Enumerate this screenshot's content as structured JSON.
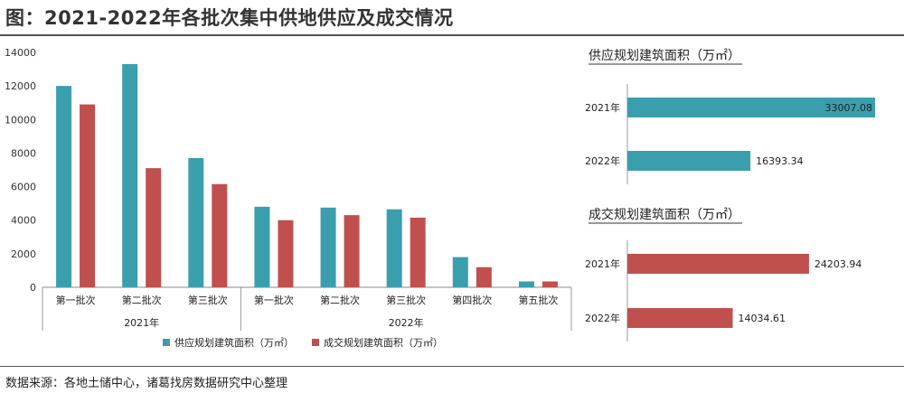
{
  "title": "图：2021-2022年各批次集中供地供应及成交情况",
  "source": "数据来源：各地土储中心，诸葛找房数据研究中心整理",
  "colors": {
    "supply": "#3a9ead",
    "deal": "#c0504d"
  },
  "chart_data": [
    {
      "type": "bar",
      "groups": [
        {
          "label": "2021年",
          "categories": [
            "第一批次",
            "第二批次",
            "第三批次"
          ]
        },
        {
          "label": "2022年",
          "categories": [
            "第一批次",
            "第二批次",
            "第三批次",
            "第四批次",
            "第五批次"
          ]
        }
      ],
      "categories": [
        "第一批次",
        "第二批次",
        "第三批次",
        "第一批次",
        "第二批次",
        "第三批次",
        "第四批次",
        "第五批次"
      ],
      "series": [
        {
          "name": "供应规划建筑面积（万㎡）",
          "values": [
            12000,
            13300,
            7700,
            4800,
            4750,
            4650,
            1800,
            350
          ]
        },
        {
          "name": "成交规划建筑面积（万㎡）",
          "values": [
            10900,
            7100,
            6150,
            4000,
            4300,
            4150,
            1200,
            350
          ]
        }
      ],
      "ylim": [
        0,
        14000
      ],
      "yticks": [
        0,
        2000,
        4000,
        6000,
        8000,
        10000,
        12000,
        14000
      ],
      "legend": "bottom"
    },
    {
      "type": "bar",
      "orientation": "horizontal",
      "title": "供应规划建筑面积（万㎡）",
      "categories": [
        "2021年",
        "2022年"
      ],
      "values": [
        33007.08,
        16393.34
      ],
      "value_labels": [
        "33007.08",
        "16393.34"
      ]
    },
    {
      "type": "bar",
      "orientation": "horizontal",
      "title": "成交规划建筑面积（万㎡）",
      "categories": [
        "2021年",
        "2022年"
      ],
      "values": [
        24203.94,
        14034.61
      ],
      "value_labels": [
        "24203.94",
        "14034.61"
      ]
    }
  ]
}
